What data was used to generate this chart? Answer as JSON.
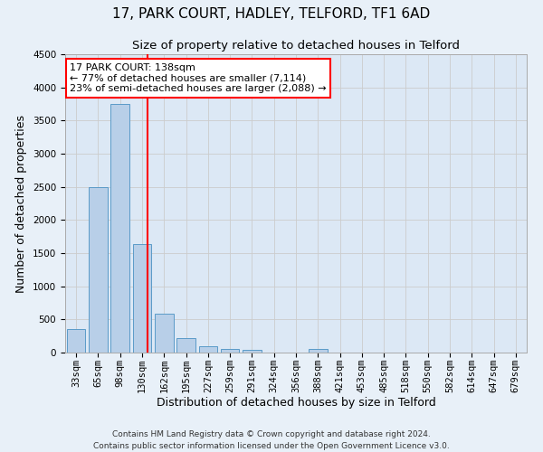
{
  "title": "17, PARK COURT, HADLEY, TELFORD, TF1 6AD",
  "subtitle": "Size of property relative to detached houses in Telford",
  "xlabel": "Distribution of detached houses by size in Telford",
  "ylabel": "Number of detached properties",
  "categories": [
    "33sqm",
    "65sqm",
    "98sqm",
    "130sqm",
    "162sqm",
    "195sqm",
    "227sqm",
    "259sqm",
    "291sqm",
    "324sqm",
    "356sqm",
    "388sqm",
    "421sqm",
    "453sqm",
    "485sqm",
    "518sqm",
    "550sqm",
    "582sqm",
    "614sqm",
    "647sqm",
    "679sqm"
  ],
  "values": [
    360,
    2500,
    3750,
    1640,
    590,
    220,
    100,
    55,
    40,
    0,
    0,
    60,
    0,
    0,
    0,
    0,
    0,
    0,
    0,
    0,
    0
  ],
  "bar_color": "#b8cfe8",
  "bar_edge_color": "#5a9bc8",
  "vline_color": "red",
  "annotation_text": "17 PARK COURT: 138sqm\n← 77% of detached houses are smaller (7,114)\n23% of semi-detached houses are larger (2,088) →",
  "annotation_box_color": "white",
  "annotation_box_edge_color": "red",
  "ylim": [
    0,
    4500
  ],
  "yticks": [
    0,
    500,
    1000,
    1500,
    2000,
    2500,
    3000,
    3500,
    4000,
    4500
  ],
  "footnote": "Contains HM Land Registry data © Crown copyright and database right 2024.\nContains public sector information licensed under the Open Government Licence v3.0.",
  "title_fontsize": 11,
  "subtitle_fontsize": 9.5,
  "axis_label_fontsize": 9,
  "tick_fontsize": 7.5,
  "annotation_fontsize": 8,
  "footnote_fontsize": 6.5,
  "grid_color": "#cccccc",
  "background_color": "#e8f0f8",
  "plot_background_color": "#dce8f5"
}
